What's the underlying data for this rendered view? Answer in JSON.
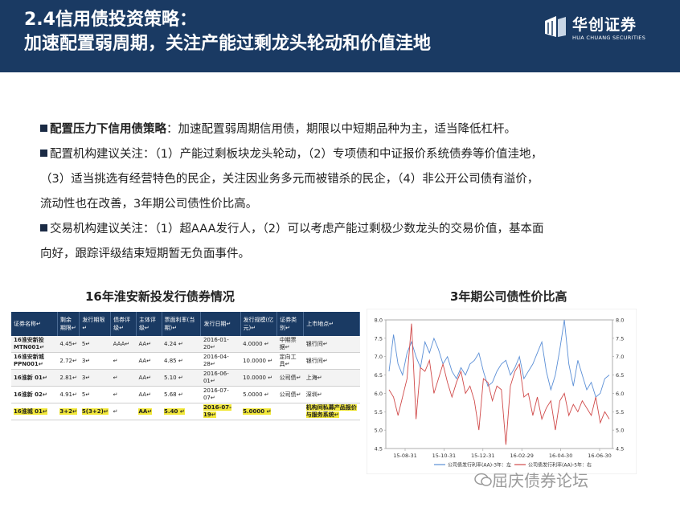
{
  "header": {
    "title_line1": "2.4信用债投资策略：",
    "title_line2": "加速配置弱周期，关注产能过剩龙头轮动和价值洼地",
    "logo_cn": "华创证券",
    "logo_en": "HUA CHUANG SECURITIES"
  },
  "content": {
    "p1_bold": "配置压力下信用债策略",
    "p1_text": "：加速配置弱周期信用债，期限以中短期品种为主，适当降低杠杆。",
    "p2_line1": "配置机构建议关注：（1）产能过剩板块龙头轮动，（2）专项债和中证报价系统债券等价值洼地，",
    "p2_line2": "（3）适当挑选有经营特色的民企，关注因业务多元而被错杀的民企，（4）非公开公司债有溢价，",
    "p2_line3": "流动性也在改善，3年期公司债性价比高。",
    "p3_line1": "交易机构建议关注：（1）超AAA发行人，（2）可以考虑产能过剩极少数龙头的交易价值，基本面",
    "p3_line2": "向好，跟踪评级结束短期暂无负面事件。"
  },
  "table": {
    "title": "16年淮安新投发行债券情况",
    "headers": [
      "证券名称↵",
      "剩余期限↵",
      "发行期限↵",
      "债券评级↵",
      "主体评级↵",
      "票面利率(当期)↵",
      "发行日期↵",
      "发行规模(亿元)↵",
      "证券类别↵",
      "上市地点↵"
    ],
    "rows": [
      [
        "16淮安新投MTN001↵",
        "4.45↵",
        "5↵",
        "AAA↵",
        "AA↵",
        "4.24 ↵",
        "2016-01-20↵",
        "4.0000 ↵",
        "中期票据↵",
        "银行间↵"
      ],
      [
        "16淮安新城PPN001↵",
        "2.72↵",
        "3↵",
        "↵",
        "AA↵",
        "4.85 ↵",
        "2016-04-28↵",
        "10.0000 ↵",
        "定向工具↵",
        "银行间↵"
      ],
      [
        "16淮新 01↵",
        "2.81↵",
        "3↵",
        "↵",
        "AA↵",
        "5.10 ↵",
        "2016-06-01↵",
        "10.0000 ↵",
        "公司债↵",
        "上海↵"
      ],
      [
        "16淮新 02↵",
        "4.91↵",
        "5↵",
        "↵",
        "AA↵",
        "5.68 ↵",
        "2016-07-07↵",
        "5.0000 ↵",
        "公司债↵",
        "深圳↵"
      ],
      [
        "16淮城 01↵",
        "3+2↵",
        "5(3+2)↵",
        "↵",
        "AA↵",
        "5.40 ↵",
        "2016-07-19↵",
        "5.0000 ↵",
        "",
        "机构间私募产品报价与服务系统↵"
      ]
    ]
  },
  "chart_data": {
    "type": "line",
    "title": "3年期公司债性价比高",
    "x_ticks": [
      "15-08-31",
      "15-10-31",
      "15-12-31",
      "16-02-29",
      "16-04-30",
      "16-06-30"
    ],
    "y_left_ticks": [
      "4.5",
      "5.0",
      "5.5",
      "6.0",
      "6.5",
      "7.0",
      "7.5",
      "8.0"
    ],
    "y_right_ticks": [
      "4.5",
      "5.0",
      "5.5",
      "6.0",
      "6.5",
      "7.0",
      "7.5",
      "8.0"
    ],
    "ylim": [
      4.5,
      8.0
    ],
    "series": [
      {
        "name": "公司债发行利率(AA)-3年：左",
        "color": "#5b8fd6",
        "values": [
          6.6,
          7.6,
          6.8,
          6.5,
          7.1,
          7.4,
          7.0,
          6.7,
          7.4,
          7.1,
          7.5,
          7.2,
          6.8,
          7.0,
          6.6,
          6.4,
          6.7,
          6.5,
          6.8,
          6.9,
          7.1,
          6.6,
          6.2,
          6.3,
          6.6,
          6.8,
          6.9,
          6.5,
          6.7,
          7.0,
          6.4,
          6.6,
          6.8,
          7.1,
          7.4,
          6.6,
          6.1,
          6.5,
          7.2,
          8.0,
          6.8,
          6.2,
          6.9,
          6.5,
          6.1,
          6.3,
          5.9,
          6.0,
          6.4,
          6.5
        ]
      },
      {
        "name": "公司债发行利率(AA)-5年：右",
        "color": "#d04a4a",
        "values": [
          6.1,
          5.9,
          5.4,
          5.9,
          6.4,
          7.9,
          5.3,
          6.7,
          6.6,
          6.9,
          6.0,
          6.4,
          6.8,
          6.3,
          5.9,
          6.3,
          6.6,
          6.0,
          6.2,
          5.8,
          5.0,
          6.4,
          6.3,
          5.8,
          6.2,
          6.1,
          4.6,
          6.2,
          6.6,
          6.8,
          5.9,
          6.0,
          5.4,
          5.9,
          5.3,
          5.6,
          5.8,
          5.0,
          5.8,
          6.0,
          5.4,
          5.7,
          5.5,
          5.8,
          5.6,
          5.4,
          5.9,
          5.2,
          5.5,
          5.3
        ]
      }
    ]
  },
  "watermark": "屈庆债券论坛"
}
